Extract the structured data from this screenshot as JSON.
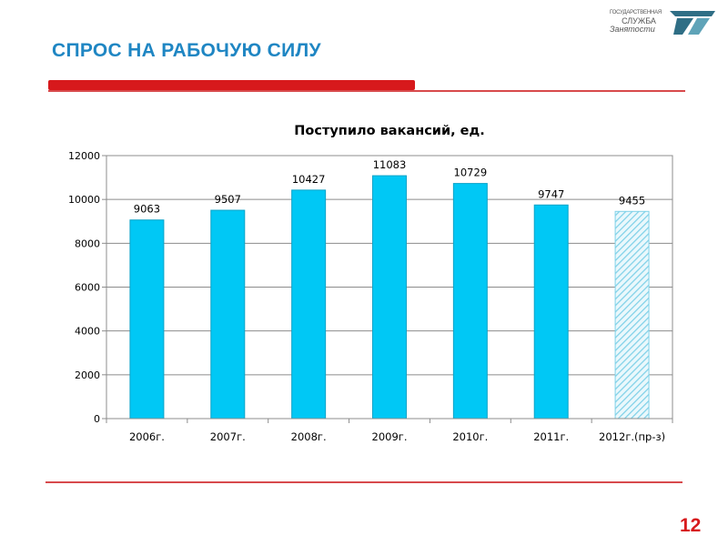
{
  "slide": {
    "title": "СПРОС НА РАБОЧУЮ СИЛУ",
    "page_number": "12",
    "logo": {
      "line1": "ГОСУДАРСТВЕННАЯ",
      "line2": "СЛУЖБА",
      "line3": "Занятости",
      "icon": "employment-service-emblem-icon"
    },
    "colors": {
      "title": "#1f86c3",
      "accent_red": "#d7191c",
      "bar_fill": "#00c8f5",
      "forecast_hatch": "#7fd1e8"
    }
  },
  "chart_data": {
    "type": "bar",
    "title": "Поступило вакансий, ед.",
    "categories": [
      "2006г.",
      "2007г.",
      "2008г.",
      "2009г.",
      "2010г.",
      "2011г.",
      "2012г.(пр-з)"
    ],
    "values": [
      9063,
      9507,
      10427,
      11083,
      10729,
      9747,
      9455
    ],
    "data_labels": [
      "9063",
      "9507",
      "10427",
      "11083",
      "10729",
      "9747",
      "9455"
    ],
    "forecast": [
      false,
      false,
      false,
      false,
      false,
      false,
      true
    ],
    "ylim": [
      0,
      12000
    ],
    "yticks": [
      "0",
      "2000",
      "4000",
      "6000",
      "8000",
      "10000",
      "12000"
    ],
    "xlabel": "",
    "ylabel": "",
    "grid": true,
    "legend": "none"
  }
}
